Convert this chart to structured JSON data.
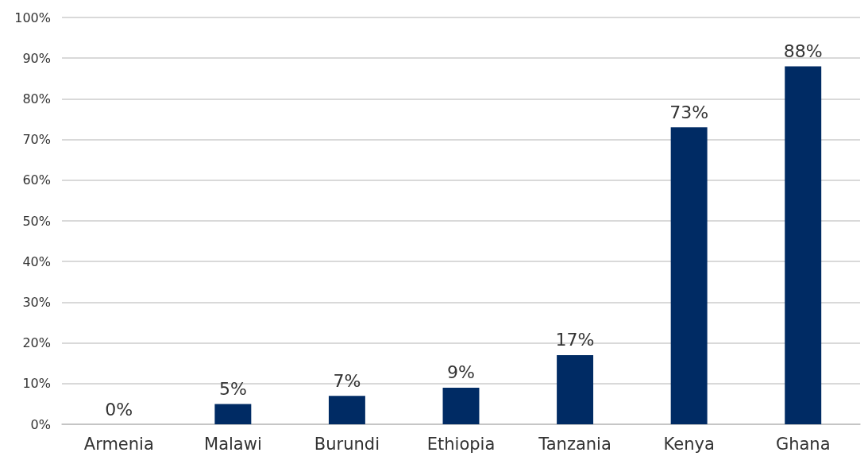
{
  "chart_data": {
    "type": "bar",
    "categories": [
      "Armenia",
      "Malawi",
      "Burundi",
      "Ethiopia",
      "Tanzania",
      "Kenya",
      "Ghana"
    ],
    "values": [
      0,
      5,
      7,
      9,
      17,
      73,
      88
    ],
    "value_labels": [
      "0%",
      "5%",
      "7%",
      "9%",
      "17%",
      "73%",
      "88%"
    ],
    "color": "#002b64",
    "ylim": [
      0,
      100
    ],
    "yticks": [
      {
        "value": 0,
        "label": "0%"
      },
      {
        "value": 10,
        "label": "10%"
      },
      {
        "value": 20,
        "label": "20%"
      },
      {
        "value": 30,
        "label": "30%"
      },
      {
        "value": 40,
        "label": "40%"
      },
      {
        "value": 50,
        "label": "50%"
      },
      {
        "value": 60,
        "label": "60%"
      },
      {
        "value": 70,
        "label": "70%"
      },
      {
        "value": 80,
        "label": "80%"
      },
      {
        "value": 90,
        "label": "90%"
      },
      {
        "value": 100,
        "label": "100%"
      }
    ],
    "grid": "y"
  }
}
